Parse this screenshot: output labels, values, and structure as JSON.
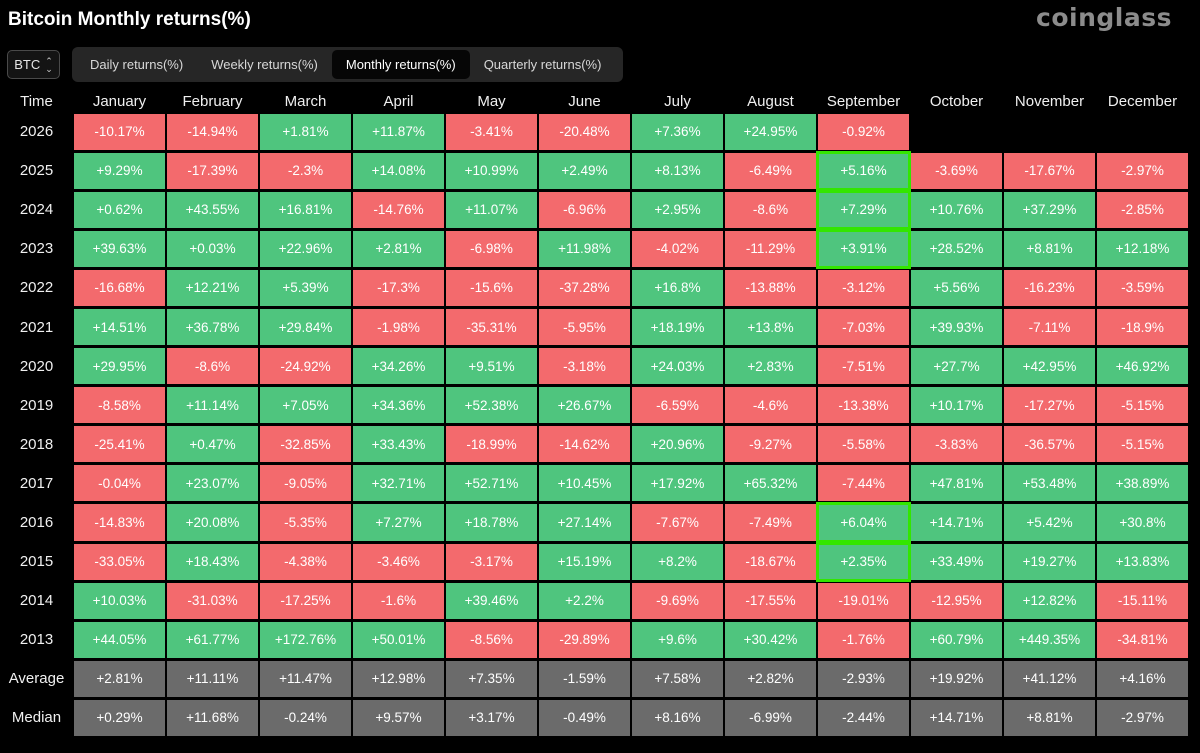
{
  "title": "Bitcoin Monthly returns(%)",
  "brand": "coinglass",
  "asset_select": {
    "value": "BTC",
    "icon": "chevron-updown-icon"
  },
  "tabs": [
    {
      "label": "Daily returns(%)",
      "active": false
    },
    {
      "label": "Weekly returns(%)",
      "active": false
    },
    {
      "label": "Monthly returns(%)",
      "active": true
    },
    {
      "label": "Quarterly returns(%)",
      "active": false
    }
  ],
  "colors": {
    "positive": "#4fc57e",
    "negative": "#f36a6d",
    "summary": "#6b6b6b",
    "highlight": "#33e600"
  },
  "chart_data": {
    "type": "heatmap",
    "title": "Bitcoin Monthly returns(%)",
    "row_header": "Time",
    "columns": [
      "January",
      "February",
      "March",
      "April",
      "May",
      "June",
      "July",
      "August",
      "September",
      "October",
      "November",
      "December"
    ],
    "rows": [
      {
        "label": "2026",
        "values": [
          "-10.17%",
          "-14.94%",
          "+1.81%",
          "+11.87%",
          "-3.41%",
          "-20.48%",
          "+7.36%",
          "+24.95%",
          "-0.92%",
          "",
          "",
          ""
        ]
      },
      {
        "label": "2025",
        "values": [
          "+9.29%",
          "-17.39%",
          "-2.3%",
          "+14.08%",
          "+10.99%",
          "+2.49%",
          "+8.13%",
          "-6.49%",
          "+5.16%",
          "-3.69%",
          "-17.67%",
          "-2.97%"
        ]
      },
      {
        "label": "2024",
        "values": [
          "+0.62%",
          "+43.55%",
          "+16.81%",
          "-14.76%",
          "+11.07%",
          "-6.96%",
          "+2.95%",
          "-8.6%",
          "+7.29%",
          "+10.76%",
          "+37.29%",
          "-2.85%"
        ]
      },
      {
        "label": "2023",
        "values": [
          "+39.63%",
          "+0.03%",
          "+22.96%",
          "+2.81%",
          "-6.98%",
          "+11.98%",
          "-4.02%",
          "-11.29%",
          "+3.91%",
          "+28.52%",
          "+8.81%",
          "+12.18%"
        ]
      },
      {
        "label": "2022",
        "values": [
          "-16.68%",
          "+12.21%",
          "+5.39%",
          "-17.3%",
          "-15.6%",
          "-37.28%",
          "+16.8%",
          "-13.88%",
          "-3.12%",
          "+5.56%",
          "-16.23%",
          "-3.59%"
        ]
      },
      {
        "label": "2021",
        "values": [
          "+14.51%",
          "+36.78%",
          "+29.84%",
          "-1.98%",
          "-35.31%",
          "-5.95%",
          "+18.19%",
          "+13.8%",
          "-7.03%",
          "+39.93%",
          "-7.11%",
          "-18.9%"
        ]
      },
      {
        "label": "2020",
        "values": [
          "+29.95%",
          "-8.6%",
          "-24.92%",
          "+34.26%",
          "+9.51%",
          "-3.18%",
          "+24.03%",
          "+2.83%",
          "-7.51%",
          "+27.7%",
          "+42.95%",
          "+46.92%"
        ]
      },
      {
        "label": "2019",
        "values": [
          "-8.58%",
          "+11.14%",
          "+7.05%",
          "+34.36%",
          "+52.38%",
          "+26.67%",
          "-6.59%",
          "-4.6%",
          "-13.38%",
          "+10.17%",
          "-17.27%",
          "-5.15%"
        ]
      },
      {
        "label": "2018",
        "values": [
          "-25.41%",
          "+0.47%",
          "-32.85%",
          "+33.43%",
          "-18.99%",
          "-14.62%",
          "+20.96%",
          "-9.27%",
          "-5.58%",
          "-3.83%",
          "-36.57%",
          "-5.15%"
        ]
      },
      {
        "label": "2017",
        "values": [
          "-0.04%",
          "+23.07%",
          "-9.05%",
          "+32.71%",
          "+52.71%",
          "+10.45%",
          "+17.92%",
          "+65.32%",
          "-7.44%",
          "+47.81%",
          "+53.48%",
          "+38.89%"
        ]
      },
      {
        "label": "2016",
        "values": [
          "-14.83%",
          "+20.08%",
          "-5.35%",
          "+7.27%",
          "+18.78%",
          "+27.14%",
          "-7.67%",
          "-7.49%",
          "+6.04%",
          "+14.71%",
          "+5.42%",
          "+30.8%"
        ]
      },
      {
        "label": "2015",
        "values": [
          "-33.05%",
          "+18.43%",
          "-4.38%",
          "-3.46%",
          "-3.17%",
          "+15.19%",
          "+8.2%",
          "-18.67%",
          "+2.35%",
          "+33.49%",
          "+19.27%",
          "+13.83%"
        ]
      },
      {
        "label": "2014",
        "values": [
          "+10.03%",
          "-31.03%",
          "-17.25%",
          "-1.6%",
          "+39.46%",
          "+2.2%",
          "-9.69%",
          "-17.55%",
          "-19.01%",
          "-12.95%",
          "+12.82%",
          "-15.11%"
        ]
      },
      {
        "label": "2013",
        "values": [
          "+44.05%",
          "+61.77%",
          "+172.76%",
          "+50.01%",
          "-8.56%",
          "-29.89%",
          "+9.6%",
          "+30.42%",
          "-1.76%",
          "+60.79%",
          "+449.35%",
          "-34.81%"
        ]
      }
    ],
    "summary_rows": [
      {
        "label": "Average",
        "values": [
          "+2.81%",
          "+11.11%",
          "+11.47%",
          "+12.98%",
          "+7.35%",
          "-1.59%",
          "+7.58%",
          "+2.82%",
          "-2.93%",
          "+19.92%",
          "+41.12%",
          "+4.16%"
        ]
      },
      {
        "label": "Median",
        "values": [
          "+0.29%",
          "+11.68%",
          "-0.24%",
          "+9.57%",
          "+3.17%",
          "-0.49%",
          "+8.16%",
          "-6.99%",
          "-2.44%",
          "+14.71%",
          "+8.81%",
          "-2.97%"
        ]
      }
    ],
    "highlighted_cells": [
      {
        "row": "2025",
        "column": "September"
      },
      {
        "row": "2024",
        "column": "September"
      },
      {
        "row": "2023",
        "column": "September"
      },
      {
        "row": "2016",
        "column": "September"
      },
      {
        "row": "2015",
        "column": "September"
      }
    ]
  }
}
